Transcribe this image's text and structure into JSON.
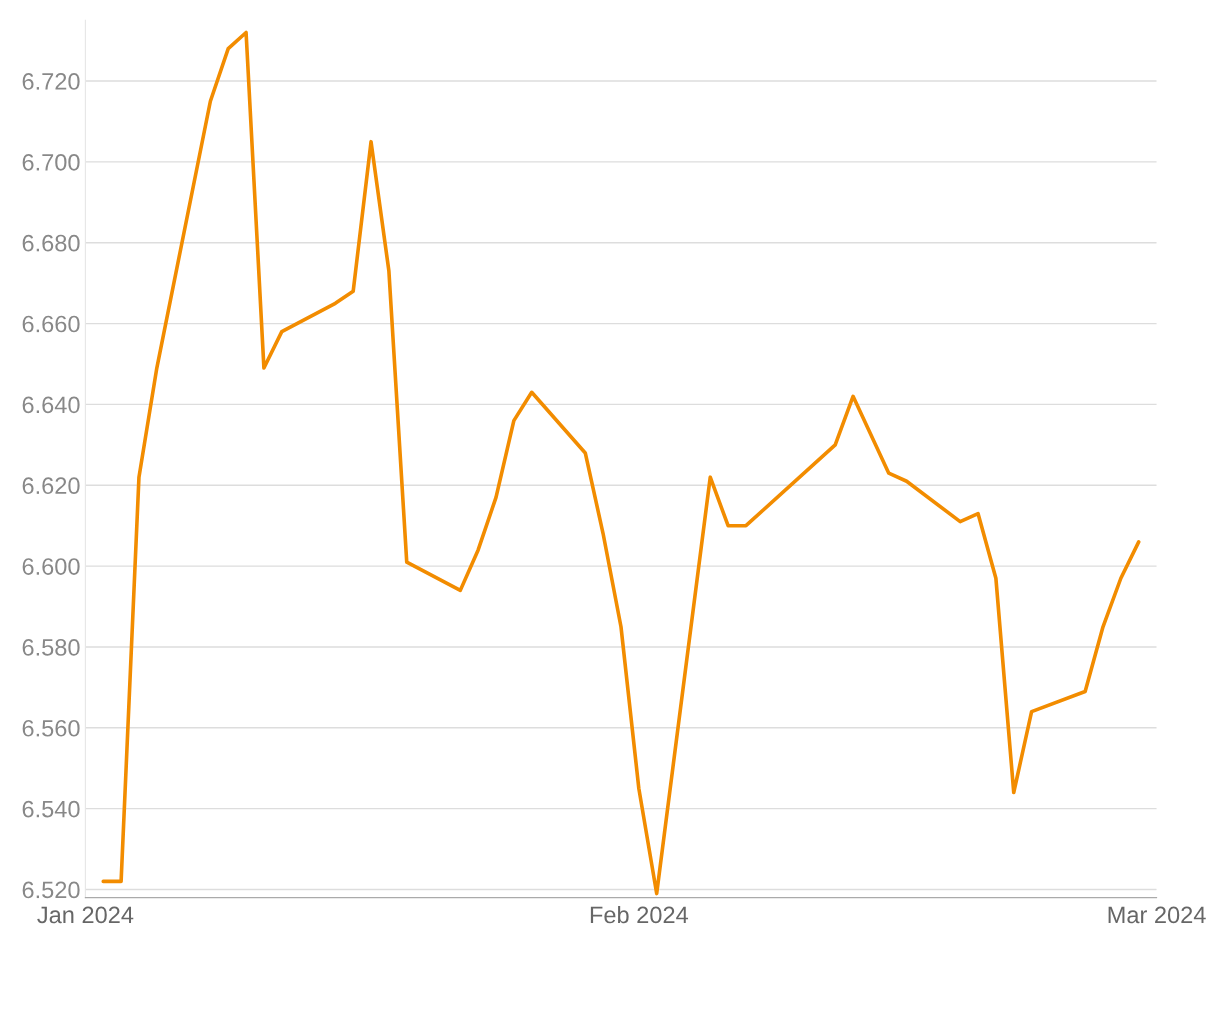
{
  "chart_data": {
    "type": "line",
    "x": [
      "2024-01-02",
      "2024-01-03",
      "2024-01-04",
      "2024-01-05",
      "2024-01-08",
      "2024-01-09",
      "2024-01-10",
      "2024-01-11",
      "2024-01-12",
      "2024-01-15",
      "2024-01-16",
      "2024-01-17",
      "2024-01-18",
      "2024-01-19",
      "2024-01-22",
      "2024-01-23",
      "2024-01-24",
      "2024-01-25",
      "2024-01-26",
      "2024-01-29",
      "2024-01-30",
      "2024-01-31",
      "2024-02-01",
      "2024-02-02",
      "2024-02-05",
      "2024-02-06",
      "2024-02-07",
      "2024-02-12",
      "2024-02-13",
      "2024-02-15",
      "2024-02-16",
      "2024-02-19",
      "2024-02-20",
      "2024-02-21",
      "2024-02-22",
      "2024-02-23",
      "2024-02-26",
      "2024-02-27",
      "2024-02-28",
      "2024-02-29"
    ],
    "series": [
      {
        "color": "#f28c00",
        "values": [
          6.522,
          6.522,
          6.622,
          6.649,
          6.715,
          6.728,
          6.732,
          6.649,
          6.658,
          6.665,
          6.668,
          6.705,
          6.673,
          6.601,
          6.594,
          6.604,
          6.617,
          6.636,
          6.643,
          6.628,
          6.608,
          6.585,
          6.545,
          6.519,
          6.622,
          6.61,
          6.61,
          6.63,
          6.642,
          6.623,
          6.621,
          6.611,
          6.613,
          6.597,
          6.544,
          6.564,
          6.569,
          6.585,
          6.597,
          6.606
        ]
      }
    ],
    "xlim": [
      "2024-01-01",
      "2024-03-01"
    ],
    "xticks": [
      {
        "value": "2024-01-01",
        "label": "Jan 2024"
      },
      {
        "value": "2024-02-01",
        "label": "Feb 2024"
      },
      {
        "value": "2024-03-01",
        "label": "Mar 2024"
      }
    ],
    "ylim": [
      6.518,
      6.735
    ],
    "yticks": [
      {
        "value": 6.52,
        "label": "6.520"
      },
      {
        "value": 6.54,
        "label": "6.540"
      },
      {
        "value": 6.56,
        "label": "6.560"
      },
      {
        "value": 6.58,
        "label": "6.580"
      },
      {
        "value": 6.6,
        "label": "6.600"
      },
      {
        "value": 6.62,
        "label": "6.620"
      },
      {
        "value": 6.64,
        "label": "6.640"
      },
      {
        "value": 6.66,
        "label": "6.660"
      },
      {
        "value": 6.68,
        "label": "6.680"
      },
      {
        "value": 6.7,
        "label": "6.700"
      },
      {
        "value": 6.72,
        "label": "6.720"
      }
    ],
    "grid": "y",
    "marker": "none",
    "line_style": "solid"
  }
}
